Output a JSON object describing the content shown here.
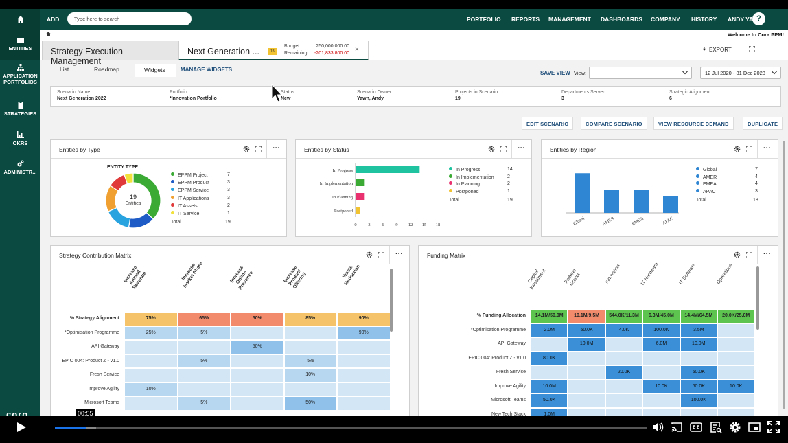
{
  "app": {
    "nav_add": "ADD",
    "search_placeholder": "Type here to search",
    "nav_items": [
      "PORTFOLIO",
      "REPORTS",
      "MANAGEMENT",
      "DASHBOARDS",
      "COMPANY",
      "HISTORY",
      "ANDY YAWN"
    ],
    "help_label": "?",
    "welcome": "Welcome to Cora PPM!",
    "logo": "coro"
  },
  "sidebar": {
    "items": [
      {
        "label": "ENTITIES",
        "icon": "folder-icon"
      },
      {
        "label": "APPLICATION PORTFOLIOS",
        "icon": "org-chart-icon"
      },
      {
        "label": "STRATEGIES",
        "icon": "clipboard-icon"
      },
      {
        "label": "OKRS",
        "icon": "bar-chart-icon"
      },
      {
        "label": "ADMINISTR...",
        "icon": "gears-icon"
      }
    ]
  },
  "tabs": [
    {
      "label": "Strategy Execution Management"
    },
    {
      "label": "Next Generation ..."
    }
  ],
  "budget": {
    "badge": "19",
    "label_budget": "Budget",
    "label_remaining": "Remaining",
    "value_budget": "250,000,000.00",
    "value_remaining": "-201,833,800.00",
    "close": "×"
  },
  "toolbar": {
    "export": "EXPORT"
  },
  "subtabs": {
    "list": "List",
    "roadmap": "Roadmap",
    "widgets": "Widgets",
    "manage": "MANAGE WIDGETS"
  },
  "view": {
    "save": "SAVE VIEW",
    "label": "View:",
    "value": "",
    "date_range": "12 Jul 2020 - 31 Dec 2023"
  },
  "scenario": [
    {
      "label": "Scenario Name",
      "value": "Next Generation 2022"
    },
    {
      "label": "Portfolio",
      "value": "*Innovation Portfolio"
    },
    {
      "label": "Status",
      "value": "New"
    },
    {
      "label": "Scenario Owner",
      "value": "Yawn, Andy"
    },
    {
      "label": "Projects in Scenario",
      "value": "19"
    },
    {
      "label": "Departments Served",
      "value": "3"
    },
    {
      "label": "Strategic Alignment",
      "value": "6"
    }
  ],
  "actions": [
    "EDIT SCENARIO",
    "COMPARE SCENARIO",
    "VIEW RESOURCE DEMAND",
    "DUPLICATE"
  ],
  "widgets": {
    "by_type": {
      "title": "Entities by Type",
      "chart_data": {
        "type": "pie",
        "title": "ENTITY TYPE",
        "center_value": "19",
        "center_label": "Entities",
        "slices": [
          {
            "name": "EPPM Project",
            "value": 7,
            "color": "#3aaa35"
          },
          {
            "name": "EPPM Product",
            "value": 3,
            "color": "#1f5bc6"
          },
          {
            "name": "EPPM Service",
            "value": 3,
            "color": "#29a3e0"
          },
          {
            "name": "IT Applications",
            "value": 3,
            "color": "#f0a030"
          },
          {
            "name": "IT Assets",
            "value": 2,
            "color": "#e03a3a"
          },
          {
            "name": "IT Service",
            "value": 1,
            "color": "#f1e13a"
          }
        ],
        "total_label": "Total",
        "total": 19
      }
    },
    "by_status": {
      "title": "Entities by Status",
      "chart_data": {
        "type": "bar",
        "orientation": "horizontal",
        "categories": [
          "In Progress",
          "In Implementation",
          "In Planning",
          "Postponed"
        ],
        "values": [
          14,
          2,
          2,
          1
        ],
        "colors": [
          "#20c3a0",
          "#3aaa35",
          "#e8316e",
          "#f1c232"
        ],
        "xticks": [
          0,
          3,
          6,
          9,
          12,
          15,
          18
        ],
        "xlim": [
          0,
          18
        ],
        "total_label": "Total",
        "total": 19
      }
    },
    "by_region": {
      "title": "Entities by Region",
      "chart_data": {
        "type": "bar",
        "orientation": "vertical",
        "categories": [
          "Global",
          "AMER",
          "EMEA",
          "APAC"
        ],
        "values": [
          7,
          4,
          4,
          3
        ],
        "color": "#2f86d3",
        "ylim": [
          0,
          8
        ],
        "total_label": "Total",
        "total": 18
      }
    },
    "strategy_matrix": {
      "title": "Strategy Contribution Matrix",
      "columns": [
        "Increase Annual Revenue",
        "Increase Market Share",
        "Increase Online Presence",
        "Increase Product Offering",
        "Waste Reduction"
      ],
      "header_row": {
        "label": "% Strategy Alignment",
        "values": [
          "75%",
          "65%",
          "50%",
          "85%",
          "90%"
        ],
        "colors": [
          "#f5c46a",
          "#f28b6c",
          "#f28b6c",
          "#f5c46a",
          "#f5c46a"
        ]
      },
      "rows": [
        {
          "label": "*Optimisation Programme",
          "values": [
            "25%",
            "5%",
            "",
            "",
            "90%"
          ]
        },
        {
          "label": "API Gateway",
          "values": [
            "",
            "",
            "50%",
            "",
            ""
          ]
        },
        {
          "label": "EPIC 004: Product Z - v1.0",
          "values": [
            "",
            "5%",
            "",
            "5%",
            ""
          ]
        },
        {
          "label": "Fresh Service",
          "values": [
            "",
            "",
            "",
            "10%",
            ""
          ]
        },
        {
          "label": "Improve Agility",
          "values": [
            "10%",
            "",
            "",
            "",
            ""
          ]
        },
        {
          "label": "Microsoft Teams",
          "values": [
            "",
            "5%",
            "",
            "50%",
            ""
          ]
        }
      ]
    },
    "funding_matrix": {
      "title": "Funding Matrix",
      "columns": [
        "Capital Investment",
        "Federal Grants",
        "Innovation",
        "IT Hardware",
        "IT Software",
        "Operations"
      ],
      "header_row": {
        "label": "% Funding Allocation",
        "values": [
          "14.1M/50.0M",
          "10.1M/9.5M",
          "544.0K/11.3M",
          "6.3M/45.0M",
          "14.4M/64.5M",
          "20.0K/25.0M"
        ],
        "colors": [
          "#5cc44f",
          "#f28b6c",
          "#5cc44f",
          "#5cc44f",
          "#5cc44f",
          "#5cc44f"
        ]
      },
      "rows": [
        {
          "label": "*Optimisation Programme",
          "values": [
            "2.0M",
            "50.0K",
            "4.0K",
            "100.0K",
            "3.5M",
            ""
          ]
        },
        {
          "label": "API Gateway",
          "values": [
            "",
            "10.0M",
            "",
            "6.0M",
            "10.0M",
            ""
          ]
        },
        {
          "label": "EPIC 004: Product Z - v1.0",
          "values": [
            "80.0K",
            "",
            "",
            "",
            "",
            ""
          ]
        },
        {
          "label": "Fresh Service",
          "values": [
            "",
            "",
            "20.0K",
            "",
            "50.0K",
            ""
          ]
        },
        {
          "label": "Improve Agility",
          "values": [
            "10.0M",
            "",
            "",
            "10.0K",
            "60.0K",
            "10.0K"
          ]
        },
        {
          "label": "Microsoft Teams",
          "values": [
            "50.0K",
            "",
            "",
            "",
            "100.0K",
            ""
          ]
        },
        {
          "label": "New Tech Stack",
          "values": [
            "1.0M",
            "",
            "",
            "",
            "",
            ""
          ]
        }
      ]
    }
  },
  "player": {
    "time": "00:55",
    "progress": 0.052,
    "buffered": 0.07
  }
}
